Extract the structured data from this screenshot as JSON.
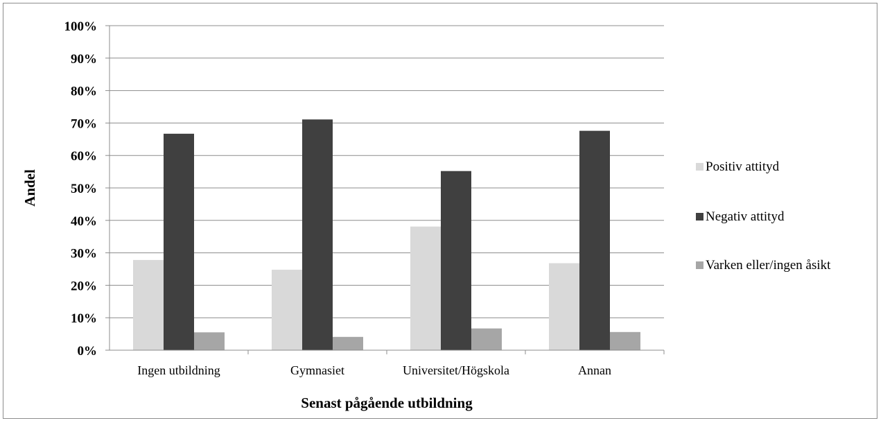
{
  "chart_data": {
    "type": "bar",
    "title": "",
    "xlabel": "Senast pågående utbildning",
    "ylabel": "Andel",
    "ylim": [
      0,
      100
    ],
    "yticks": [
      "0%",
      "10%",
      "20%",
      "30%",
      "40%",
      "50%",
      "60%",
      "70%",
      "80%",
      "90%",
      "100%"
    ],
    "grid": true,
    "legend_position": "right",
    "categories": [
      "Ingen utbildning",
      "Gymnasiet",
      "Universitet/Högskola",
      "Annan"
    ],
    "series": [
      {
        "name": "Positiv attityd",
        "color": "#d9d9d9",
        "values": [
          27.8,
          24.8,
          38.1,
          26.8
        ]
      },
      {
        "name": "Negativ attityd",
        "color": "#404040",
        "values": [
          66.7,
          71.1,
          55.2,
          67.6
        ]
      },
      {
        "name": "Varken eller/ingen åsikt",
        "color": "#a6a6a6",
        "values": [
          5.5,
          4.1,
          6.7,
          5.6
        ]
      }
    ]
  }
}
